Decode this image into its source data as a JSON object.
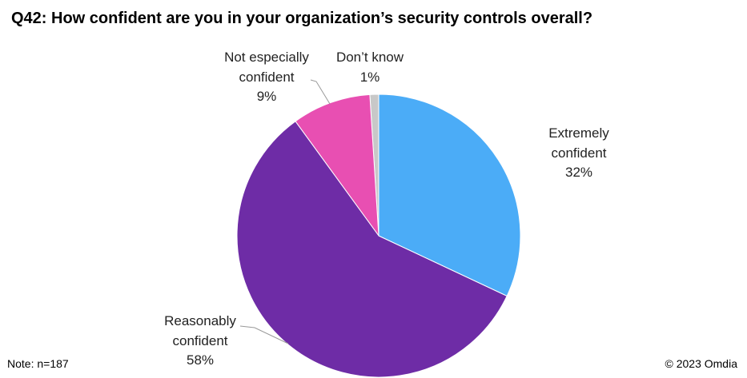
{
  "chart_data": {
    "type": "pie",
    "title": "Q42: How confident are you in your organization’s security controls overall?",
    "categories": [
      "Extremely confident",
      "Reasonably confident",
      "Not especially confident",
      "Don’t know"
    ],
    "values": [
      32,
      58,
      9,
      1
    ],
    "value_labels": [
      "32%",
      "58%",
      "9%",
      "1%"
    ],
    "colors": [
      "#4BACF7",
      "#6E2CA6",
      "#E84FB2",
      "#C8C8C8"
    ],
    "note": "Note: n=187",
    "source": "© 2023 Omdia"
  }
}
